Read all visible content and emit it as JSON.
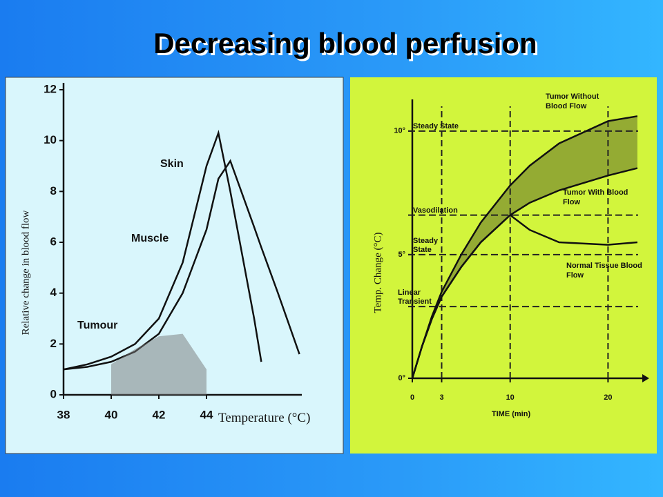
{
  "title": "Decreasing blood perfusion",
  "chart_data": [
    {
      "type": "line",
      "x_label": "Temperature (°C)",
      "y_label": "Relative change in blood flow",
      "x": [
        38,
        39,
        40,
        41,
        42,
        43,
        44,
        44.5,
        45,
        45.5,
        46,
        46.3,
        47,
        47.9
      ],
      "series": [
        {
          "name": "Skin",
          "color": "#111111",
          "style": "line",
          "values": [
            1.0,
            1.2,
            1.5,
            2.0,
            3.0,
            5.2,
            9.0,
            10.3,
            8.0,
            5.5,
            3.0,
            1.3,
            null,
            null
          ]
        },
        {
          "name": "Muscle",
          "color": "#111111",
          "style": "line",
          "values": [
            1.0,
            1.1,
            1.3,
            1.7,
            2.4,
            4.0,
            6.5,
            8.5,
            9.2,
            7.9,
            6.6,
            5.8,
            4.0,
            1.6
          ]
        },
        {
          "name": "Tumour",
          "color": "#777777",
          "style": "area",
          "values": [
            null,
            null,
            1.2,
            1.8,
            2.3,
            2.4,
            1.0,
            null,
            null,
            null,
            null,
            null,
            null,
            null
          ]
        }
      ],
      "xlim": [
        38,
        48
      ],
      "ylim": [
        0,
        12
      ],
      "xticks": [
        38,
        40,
        42,
        44
      ],
      "yticks": [
        0,
        2,
        4,
        6,
        8,
        10,
        12
      ]
    },
    {
      "type": "line",
      "x_label": "TIME (min)",
      "y_label": "Temp. Change (°C)",
      "x": [
        0,
        1,
        2,
        3,
        5,
        7,
        10,
        12,
        15,
        20,
        23
      ],
      "series": [
        {
          "name": "Tumor Without Blood Flow",
          "color": "#111111",
          "style": "line",
          "values": [
            0,
            1.3,
            2.5,
            3.5,
            5.0,
            6.3,
            7.8,
            8.6,
            9.5,
            10.4,
            10.6
          ]
        },
        {
          "name": "Tumor With Blood Flow",
          "color": "#111111",
          "style": "line",
          "values": [
            0,
            1.3,
            2.4,
            3.3,
            4.5,
            5.5,
            6.6,
            7.1,
            7.6,
            8.2,
            8.5
          ]
        },
        {
          "name": "Normal Tissue Blood Flow",
          "color": "#111111",
          "style": "line",
          "values": [
            0,
            1.3,
            2.4,
            3.3,
            4.5,
            5.5,
            6.6,
            6.0,
            5.5,
            5.4,
            5.5
          ]
        }
      ],
      "band_between": [
        0,
        1
      ],
      "reference_lines": [
        {
          "label": "Steady State",
          "value": 10
        },
        {
          "label": "Vasodilation",
          "value": 6.6
        },
        {
          "label": "Steady State",
          "value": 5
        },
        {
          "label": "Linear Transient",
          "value": 2.9
        }
      ],
      "xlim": [
        0,
        23.5
      ],
      "ylim": [
        0,
        11
      ],
      "xticks": [
        0,
        3,
        10,
        20
      ],
      "yticks": [
        {
          "value": 0,
          "label": "0°"
        },
        {
          "value": 5,
          "label": "5°"
        },
        {
          "value": 10,
          "label": "10°"
        }
      ]
    }
  ]
}
